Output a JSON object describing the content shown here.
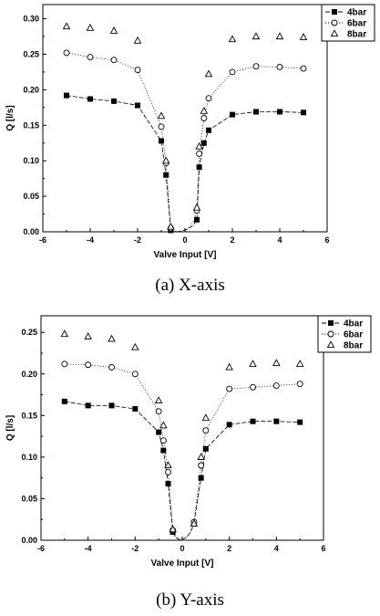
{
  "chart_data": [
    {
      "type": "line",
      "caption": "(a)  X-axis",
      "xlabel": "Valve Input [V]",
      "ylabel": "Q [l/s]",
      "xlim": [
        -6,
        6
      ],
      "ylim": [
        0,
        0.32
      ],
      "xticks": [
        "-6",
        "-4",
        "-2",
        "0",
        "2",
        "4",
        "6"
      ],
      "yticks": [
        "0.00",
        "0.05",
        "0.10",
        "0.15",
        "0.20",
        "0.25",
        "0.30"
      ],
      "legend_position": "top-right",
      "series": [
        {
          "name": "4bar",
          "marker": "square-filled",
          "line": "dashed",
          "x": [
            -5,
            -4,
            -3,
            -2,
            -1,
            -0.8,
            -0.6,
            0.5,
            0.6,
            0.8,
            1,
            2,
            3,
            4,
            5
          ],
          "y": [
            0.192,
            0.187,
            0.184,
            0.178,
            0.128,
            0.08,
            0.002,
            0.017,
            0.091,
            0.125,
            0.143,
            0.165,
            0.169,
            0.169,
            0.168
          ]
        },
        {
          "name": "6bar",
          "marker": "circle-open",
          "line": "dotted",
          "x": [
            -5,
            -4,
            -3,
            -2,
            -1,
            -0.8,
            -0.6,
            0.5,
            0.6,
            0.8,
            1,
            2,
            3,
            4,
            5
          ],
          "y": [
            0.252,
            0.246,
            0.242,
            0.228,
            0.148,
            0.097,
            0.005,
            0.03,
            0.11,
            0.16,
            0.188,
            0.225,
            0.233,
            0.232,
            0.23
          ]
        },
        {
          "name": "8bar",
          "marker": "triangle-open",
          "line": "none",
          "x": [
            -5,
            -4,
            -3,
            -2,
            -1,
            -0.8,
            -0.6,
            0.5,
            0.6,
            0.8,
            1,
            2,
            3,
            4,
            5
          ],
          "y": [
            0.289,
            0.287,
            0.283,
            0.269,
            0.163,
            0.1,
            0.007,
            0.034,
            0.12,
            0.17,
            0.222,
            0.271,
            0.275,
            0.275,
            0.274
          ]
        }
      ]
    },
    {
      "type": "line",
      "caption": "(b)  Y-axis",
      "xlabel": "Valve Input [V]",
      "ylabel": "Q [l/s]",
      "xlim": [
        -6,
        6
      ],
      "ylim": [
        0,
        0.27
      ],
      "xticks": [
        "-6",
        "-4",
        "-2",
        "0",
        "2",
        "4",
        "6"
      ],
      "yticks": [
        "0.00",
        "0.05",
        "0.10",
        "0.15",
        "0.20",
        "0.25"
      ],
      "legend_position": "top-right",
      "series": [
        {
          "name": "4bar",
          "marker": "square-filled",
          "line": "dashed",
          "x": [
            -5,
            -4,
            -3,
            -2,
            -1,
            -0.8,
            -0.6,
            -0.4,
            0.5,
            0.8,
            1,
            2,
            3,
            4,
            5
          ],
          "y": [
            0.167,
            0.162,
            0.162,
            0.158,
            0.13,
            0.108,
            0.068,
            0.01,
            0.021,
            0.075,
            0.11,
            0.139,
            0.143,
            0.143,
            0.142
          ]
        },
        {
          "name": "6bar",
          "marker": "circle-open",
          "line": "dotted",
          "x": [
            -5,
            -4,
            -3,
            -2,
            -1,
            -0.8,
            -0.6,
            -0.4,
            0.5,
            0.8,
            1,
            2,
            3,
            4,
            5
          ],
          "y": [
            0.212,
            0.211,
            0.208,
            0.2,
            0.155,
            0.12,
            0.082,
            0.012,
            0.022,
            0.09,
            0.132,
            0.182,
            0.184,
            0.186,
            0.188
          ]
        },
        {
          "name": "8bar",
          "marker": "triangle-open",
          "line": "none",
          "x": [
            -5,
            -4,
            -3,
            -2,
            -1,
            -0.8,
            -0.6,
            -0.4,
            0.5,
            0.8,
            1,
            2,
            3,
            4,
            5
          ],
          "y": [
            0.248,
            0.245,
            0.242,
            0.232,
            0.168,
            0.138,
            0.09,
            0.013,
            0.02,
            0.1,
            0.147,
            0.208,
            0.212,
            0.213,
            0.212
          ]
        }
      ]
    }
  ]
}
